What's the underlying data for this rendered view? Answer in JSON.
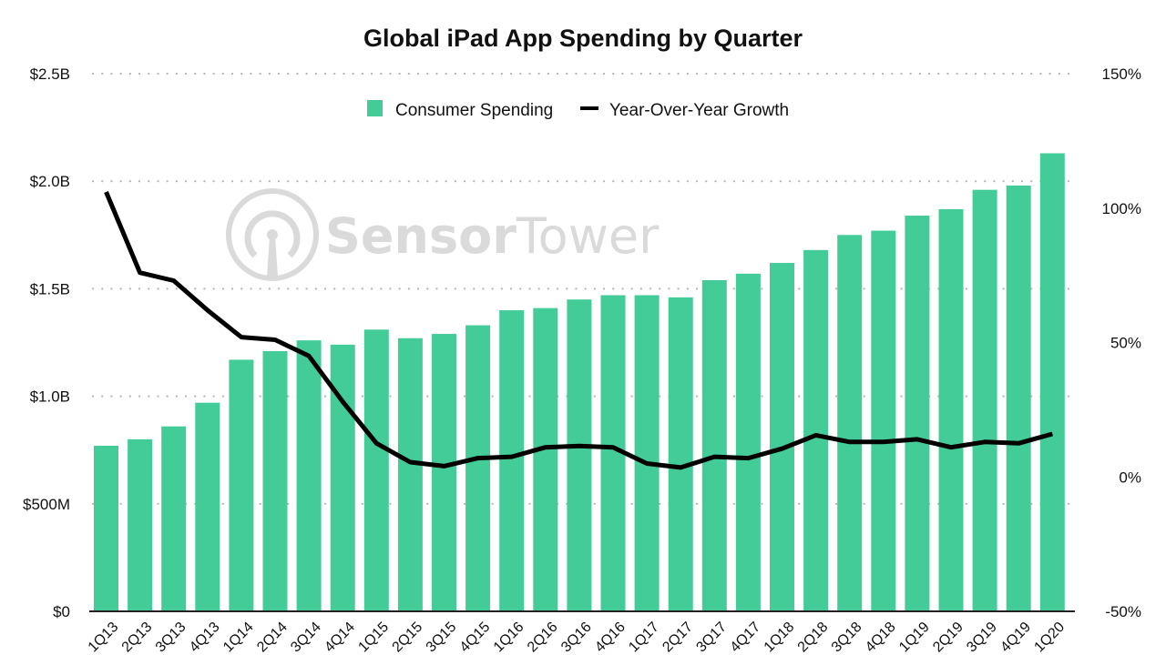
{
  "chart_data": {
    "type": "bar",
    "title": "Global iPad App Spending by Quarter",
    "watermark": "SensorTower",
    "watermark_parts": [
      "Sensor",
      "Tower"
    ],
    "xlabel": "",
    "ylabel": "",
    "y2label": "",
    "ylim": [
      0,
      2.5
    ],
    "y2lim": [
      -50,
      150
    ],
    "grid": true,
    "legend_position": "top-center",
    "y_ticks": [
      {
        "value": 0,
        "label": "$0"
      },
      {
        "value": 0.5,
        "label": "$500M"
      },
      {
        "value": 1.0,
        "label": "$1.0B"
      },
      {
        "value": 1.5,
        "label": "$1.5B"
      },
      {
        "value": 2.0,
        "label": "$2.0B"
      },
      {
        "value": 2.5,
        "label": "$2.5B"
      }
    ],
    "y2_ticks": [
      {
        "value": -50,
        "label": "-50%"
      },
      {
        "value": 0,
        "label": "0%"
      },
      {
        "value": 50,
        "label": "50%"
      },
      {
        "value": 100,
        "label": "100%"
      },
      {
        "value": 150,
        "label": "150%"
      }
    ],
    "categories": [
      "1Q13",
      "2Q13",
      "3Q13",
      "4Q13",
      "1Q14",
      "2Q14",
      "3Q14",
      "4Q14",
      "1Q15",
      "2Q15",
      "3Q15",
      "4Q15",
      "1Q16",
      "2Q16",
      "3Q16",
      "4Q16",
      "1Q17",
      "2Q17",
      "3Q17",
      "4Q17",
      "1Q18",
      "2Q18",
      "3Q18",
      "4Q18",
      "1Q19",
      "2Q19",
      "3Q19",
      "4Q19",
      "1Q20"
    ],
    "series": [
      {
        "name": "Consumer Spending",
        "type": "bar",
        "axis": "left",
        "unit": "USD billions",
        "color": "#43cc98",
        "values": [
          0.77,
          0.8,
          0.86,
          0.97,
          1.17,
          1.21,
          1.26,
          1.24,
          1.31,
          1.27,
          1.29,
          1.33,
          1.4,
          1.41,
          1.45,
          1.47,
          1.47,
          1.46,
          1.54,
          1.57,
          1.62,
          1.68,
          1.75,
          1.77,
          1.84,
          1.87,
          1.96,
          1.98,
          2.13
        ]
      },
      {
        "name": "Year-Over-Year Growth",
        "type": "line",
        "axis": "right",
        "unit": "percent",
        "color": "#000000",
        "values": [
          106,
          76,
          73,
          62,
          52,
          51,
          45,
          28,
          12.5,
          5.5,
          4,
          7,
          7.5,
          11,
          11.5,
          11,
          5,
          3.5,
          7.5,
          7,
          10.5,
          15.5,
          13,
          13,
          14,
          11,
          13,
          12.5,
          16
        ]
      }
    ]
  }
}
